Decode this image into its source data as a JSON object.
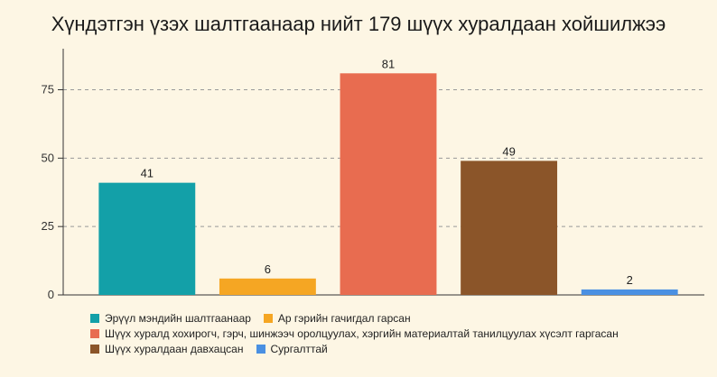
{
  "chart_data": {
    "type": "bar",
    "title": "Хүндэтгэн үзэх шалтгаанаар нийт 179 шүүх хуралдаан хойшилжээ",
    "categories": [
      "Эрүүл мэндийн шалтгаанаар",
      "Ар гэрийн гачигдал гарсан",
      "Шүүх хуралд хохирогч, гэрч, шинжээч оролцуулах, хэргийн материалтай танилцуулах хүсэлт гаргасан",
      "Шүүх хуралдаан давхацсан",
      "Сургалттай"
    ],
    "values": [
      41,
      6,
      81,
      49,
      2
    ],
    "colors": [
      "#13a0a8",
      "#f5a623",
      "#e86c50",
      "#8b5529",
      "#4a90e2"
    ],
    "ylim": [
      0,
      90
    ],
    "yticks": [
      0,
      25,
      50,
      75
    ],
    "grid": true,
    "legend_position": "bottom",
    "xlabel": "",
    "ylabel": ""
  }
}
